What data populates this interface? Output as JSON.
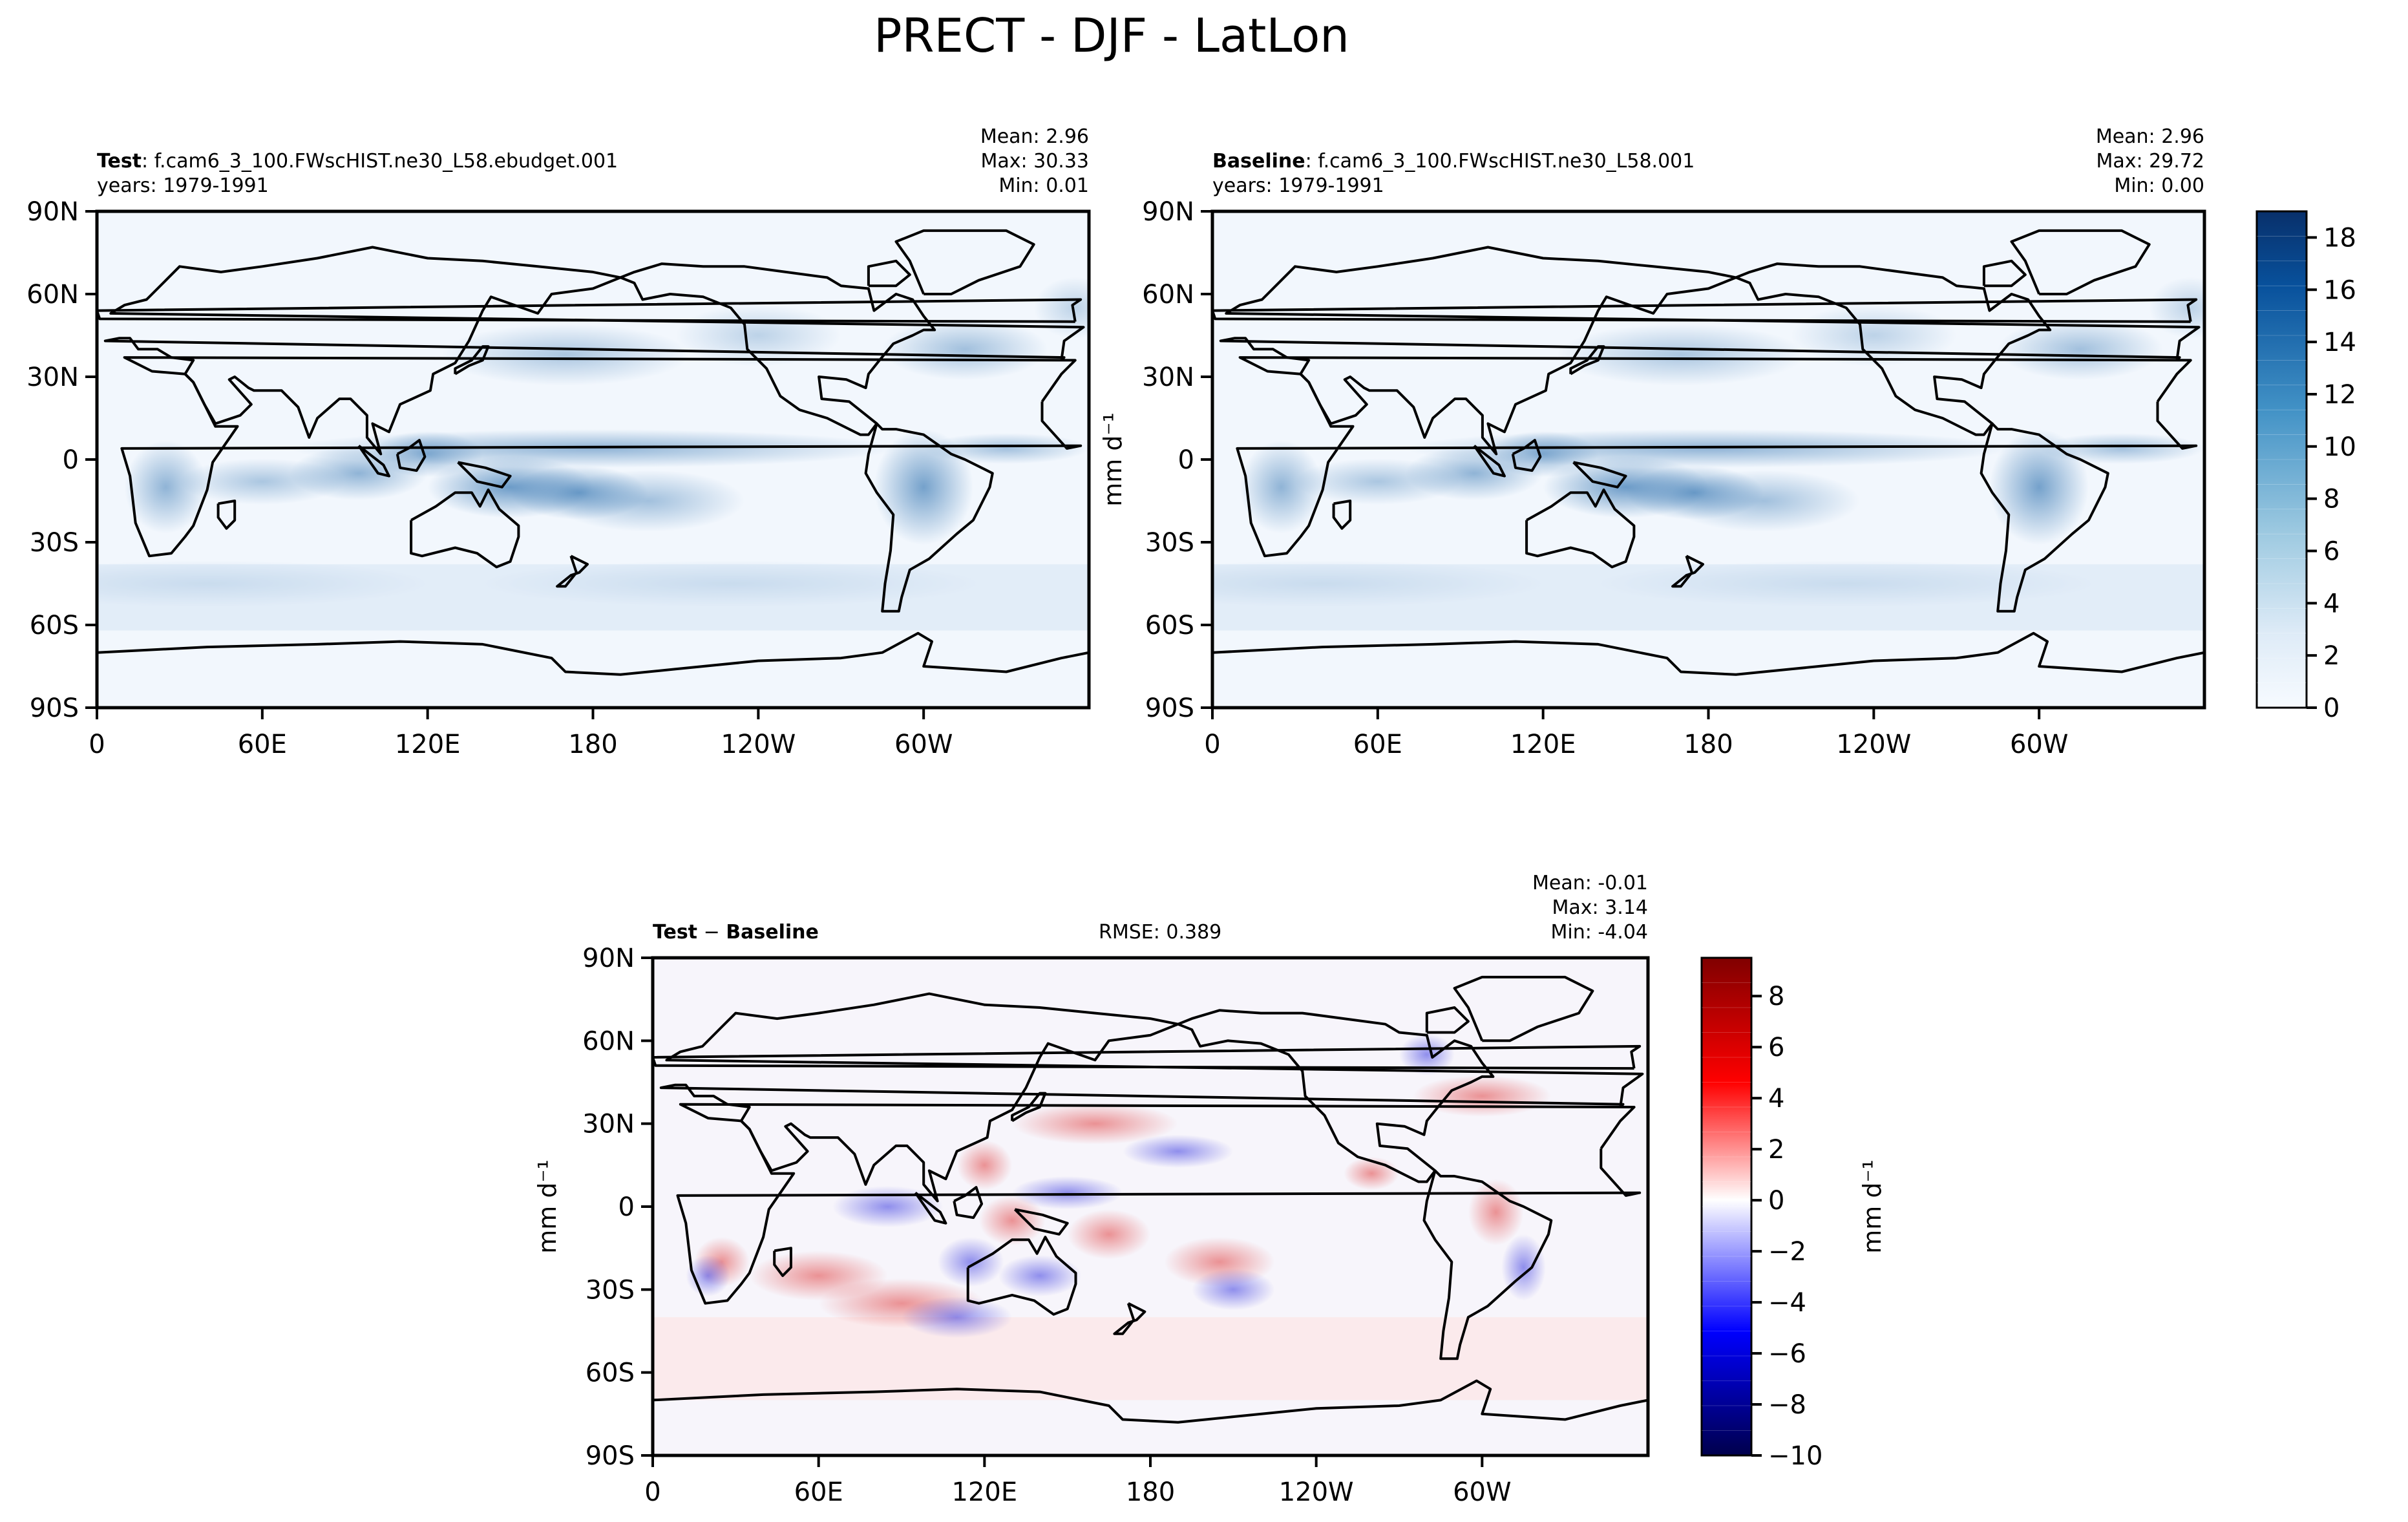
{
  "chart_data": {
    "title": "PRECT - DJF - LatLon",
    "type": "heatmap",
    "x_ticks": [
      "0",
      "60E",
      "120E",
      "180",
      "120W",
      "60W"
    ],
    "y_ticks": [
      "90N",
      "60N",
      "30N",
      "0",
      "30S",
      "60S",
      "90S"
    ],
    "xlim": [
      0,
      360
    ],
    "ylim": [
      -90,
      90
    ],
    "panels": [
      {
        "id": "test",
        "label_bold": "Test",
        "label_rest": ": f.cam6_3_100.FWscHIST.ne30_L58.ebudget.001",
        "years": "years: 1979-1991",
        "stats": [
          "Mean:  2.96",
          "Max: 30.33",
          "Min:  0.01"
        ],
        "colormap": "Blues",
        "vmin": 0,
        "vmax": 19
      },
      {
        "id": "baseline",
        "label_bold": "Baseline",
        "label_rest": ": f.cam6_3_100.FWscHIST.ne30_L58.001",
        "years": "years: 1979-1991",
        "stats": [
          "Mean:  2.96",
          "Max: 29.72",
          "Min:  0.00"
        ],
        "colormap": "Blues",
        "vmin": 0,
        "vmax": 19
      },
      {
        "id": "diff",
        "label_bold1": "Test",
        "label_sep": " − ",
        "label_bold2": "Baseline",
        "rmse": "RMSE: 0.389",
        "stats": [
          "Mean: -0.01",
          "Max:  3.14",
          "Min: -4.04"
        ],
        "colormap": "seismic",
        "vmin": -10,
        "vmax": 9.5
      }
    ],
    "colorbars": [
      {
        "id": "precip",
        "label": "mm d⁻¹",
        "ticks": [
          "0",
          "2",
          "4",
          "6",
          "8",
          "10",
          "12",
          "14",
          "16",
          "18"
        ],
        "values": [
          0,
          2,
          4,
          6,
          8,
          10,
          12,
          14,
          16,
          18
        ],
        "range": [
          0,
          19
        ]
      },
      {
        "id": "diff",
        "label": "mm d⁻¹",
        "ticks": [
          "−10",
          "−8",
          "−6",
          "−4",
          "−2",
          "0",
          "2",
          "4",
          "6",
          "8"
        ],
        "values": [
          -10,
          -8,
          -6,
          -4,
          -2,
          0,
          2,
          4,
          6,
          8
        ],
        "range": [
          -10,
          9.5
        ]
      }
    ],
    "side_labels": {
      "left_maps": "mm d⁻¹"
    }
  },
  "colors": {
    "blue_dark": "#08306b",
    "blue_mid": "#4a90c2",
    "blue_light": "#d6e6f4",
    "red": "#b2182b",
    "ocean_bg": "#f2f7fd"
  }
}
